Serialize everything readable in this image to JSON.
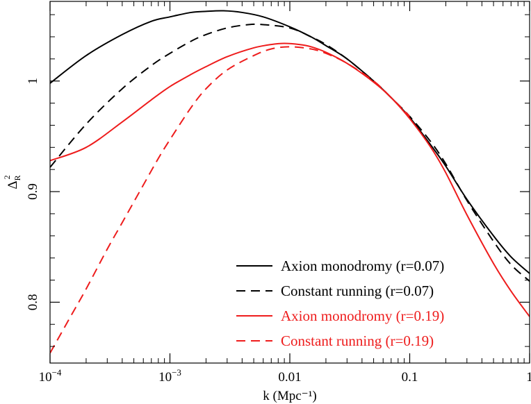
{
  "chart_data": {
    "type": "line",
    "title": "",
    "xlabel": "k (Mpc⁻¹)",
    "ylabel": "Δ",
    "ylabel_sub": "R",
    "ylabel_sup": "2",
    "xscale": "log",
    "xlim": [
      0.0001,
      1
    ],
    "ylim": [
      0.745,
      1.072
    ],
    "grid": false,
    "legend_position": "bottom-right",
    "x_ticks": [
      {
        "value": 0.0001,
        "base": "10",
        "exp": "−4"
      },
      {
        "value": 0.001,
        "base": "10",
        "exp": "−3"
      },
      {
        "value": 0.01,
        "base": "0.01",
        "exp": ""
      },
      {
        "value": 0.1,
        "base": "0.1",
        "exp": ""
      },
      {
        "value": 1,
        "base": "1",
        "exp": ""
      }
    ],
    "y_ticks": [
      {
        "value": 0.8,
        "label": "0.8"
      },
      {
        "value": 0.9,
        "label": "0.9"
      },
      {
        "value": 1.0,
        "label": "1"
      }
    ],
    "series": [
      {
        "name": "Axion monodromy (r=0.07)",
        "color": "#000000",
        "dash": "solid",
        "x": [
          0.0001,
          0.0002,
          0.0004,
          0.0007,
          0.001,
          0.0015,
          0.002,
          0.0028,
          0.004,
          0.006,
          0.01,
          0.015,
          0.02,
          0.03,
          0.05,
          0.07,
          0.1,
          0.15,
          0.2,
          0.3,
          0.5,
          0.7,
          1.0
        ],
        "y": [
          0.998,
          1.023,
          1.042,
          1.054,
          1.058,
          1.062,
          1.063,
          1.0635,
          1.062,
          1.058,
          1.049,
          1.04,
          1.032,
          1.02,
          1.0,
          0.985,
          0.967,
          0.942,
          0.923,
          0.893,
          0.86,
          0.841,
          0.826
        ]
      },
      {
        "name": "Constant running (r=0.07)",
        "color": "#000000",
        "dash": "dashed",
        "x": [
          0.0001,
          0.0002,
          0.0004,
          0.0007,
          0.001,
          0.0015,
          0.002,
          0.003,
          0.0045,
          0.006,
          0.01,
          0.015,
          0.02,
          0.03,
          0.05,
          0.07,
          0.1,
          0.15,
          0.2,
          0.3,
          0.5,
          0.7,
          1.0
        ],
        "y": [
          0.922,
          0.961,
          0.993,
          1.014,
          1.025,
          1.036,
          1.042,
          1.048,
          1.051,
          1.051,
          1.048,
          1.04,
          1.033,
          1.02,
          1.0,
          0.985,
          0.968,
          0.945,
          0.925,
          0.892,
          0.855,
          0.834,
          0.819
        ]
      },
      {
        "name": "Axion monodromy (r=0.19)",
        "color": "#ee1c1c",
        "dash": "solid",
        "x": [
          0.0001,
          0.0002,
          0.0004,
          0.0007,
          0.001,
          0.0015,
          0.002,
          0.003,
          0.005,
          0.007,
          0.009,
          0.012,
          0.015,
          0.02,
          0.03,
          0.05,
          0.07,
          0.1,
          0.15,
          0.2,
          0.3,
          0.5,
          0.7,
          1.0
        ],
        "y": [
          0.928,
          0.94,
          0.963,
          0.983,
          0.995,
          1.006,
          1.013,
          1.022,
          1.03,
          1.033,
          1.034,
          1.033,
          1.031,
          1.026,
          1.016,
          0.999,
          0.985,
          0.966,
          0.94,
          0.917,
          0.879,
          0.835,
          0.81,
          0.787
        ]
      },
      {
        "name": "Constant running (r=0.19)",
        "color": "#ee1c1c",
        "dash": "dashed",
        "x": [
          0.0001,
          0.00015,
          0.0002,
          0.0003,
          0.0004,
          0.0006,
          0.0008,
          0.001,
          0.0015,
          0.002,
          0.003,
          0.005,
          0.007,
          0.01,
          0.015,
          0.02,
          0.03,
          0.05,
          0.07,
          0.1
        ],
        "y": [
          0.754,
          0.788,
          0.812,
          0.848,
          0.872,
          0.906,
          0.93,
          0.947,
          0.976,
          0.993,
          1.01,
          1.023,
          1.029,
          1.031,
          1.029,
          1.025,
          1.016,
          1.0,
          0.985,
          0.968
        ]
      }
    ]
  }
}
